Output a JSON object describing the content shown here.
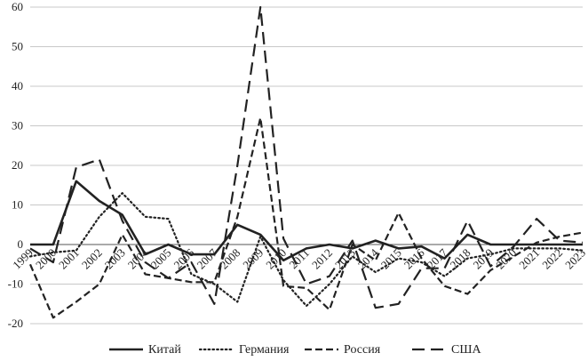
{
  "chart_data": {
    "type": "line",
    "x": [
      "1999",
      "2000",
      "2001",
      "2002",
      "2003",
      "2004",
      "2005",
      "2006",
      "2007",
      "2008",
      "2009",
      "2010",
      "2011",
      "2012",
      "2013",
      "2014",
      "2015",
      "2016",
      "2017",
      "2018",
      "2019",
      "2020",
      "2021",
      "2022",
      "2023"
    ],
    "ylim": [
      -20,
      60
    ],
    "yticks": [
      -20,
      -10,
      0,
      10,
      20,
      30,
      40,
      50,
      60
    ],
    "grid": "horizontal",
    "legend": "bottom",
    "series": [
      {
        "name": "Китай",
        "style": "solid",
        "color": "#222222",
        "values": [
          0,
          0,
          16,
          11,
          7.5,
          -2.5,
          0,
          -2.5,
          -2.5,
          5,
          2.5,
          -4,
          -1,
          0,
          -1,
          1,
          -1,
          -0.5,
          -3.5,
          2.5,
          0,
          0,
          0,
          0,
          0
        ]
      },
      {
        "name": "Германия",
        "style": "dotted",
        "color": "#222222",
        "values": [
          -3,
          -2,
          -1.5,
          7,
          13,
          7,
          6.5,
          -7.5,
          -10,
          -14.5,
          2,
          -9,
          -15.5,
          -10,
          -3,
          -7,
          -3.5,
          -4.5,
          -8,
          -3.5,
          -2.5,
          -1,
          -1,
          -1,
          -1.5
        ]
      },
      {
        "name": "Россия",
        "style": "dash",
        "color": "#222222",
        "values": [
          -5,
          -18.5,
          -14.5,
          -10,
          2.5,
          -7.5,
          -8.5,
          -9.5,
          -9.5,
          7,
          32,
          -10.5,
          -11,
          -16.5,
          0,
          -4,
          8,
          -3.5,
          -10.5,
          -12.5,
          -6.5,
          -3,
          0.5,
          2,
          3
        ]
      },
      {
        "name": "США",
        "style": "longdash",
        "color": "#222222",
        "values": [
          -1,
          -4.5,
          19.5,
          21.5,
          6,
          -4.5,
          -8.5,
          -4.5,
          -15,
          20,
          60,
          1.5,
          -10,
          -8,
          1,
          -16,
          -15,
          -6,
          -6,
          6,
          -5.5,
          -0.5,
          6.5,
          1,
          0.5
        ]
      }
    ]
  }
}
